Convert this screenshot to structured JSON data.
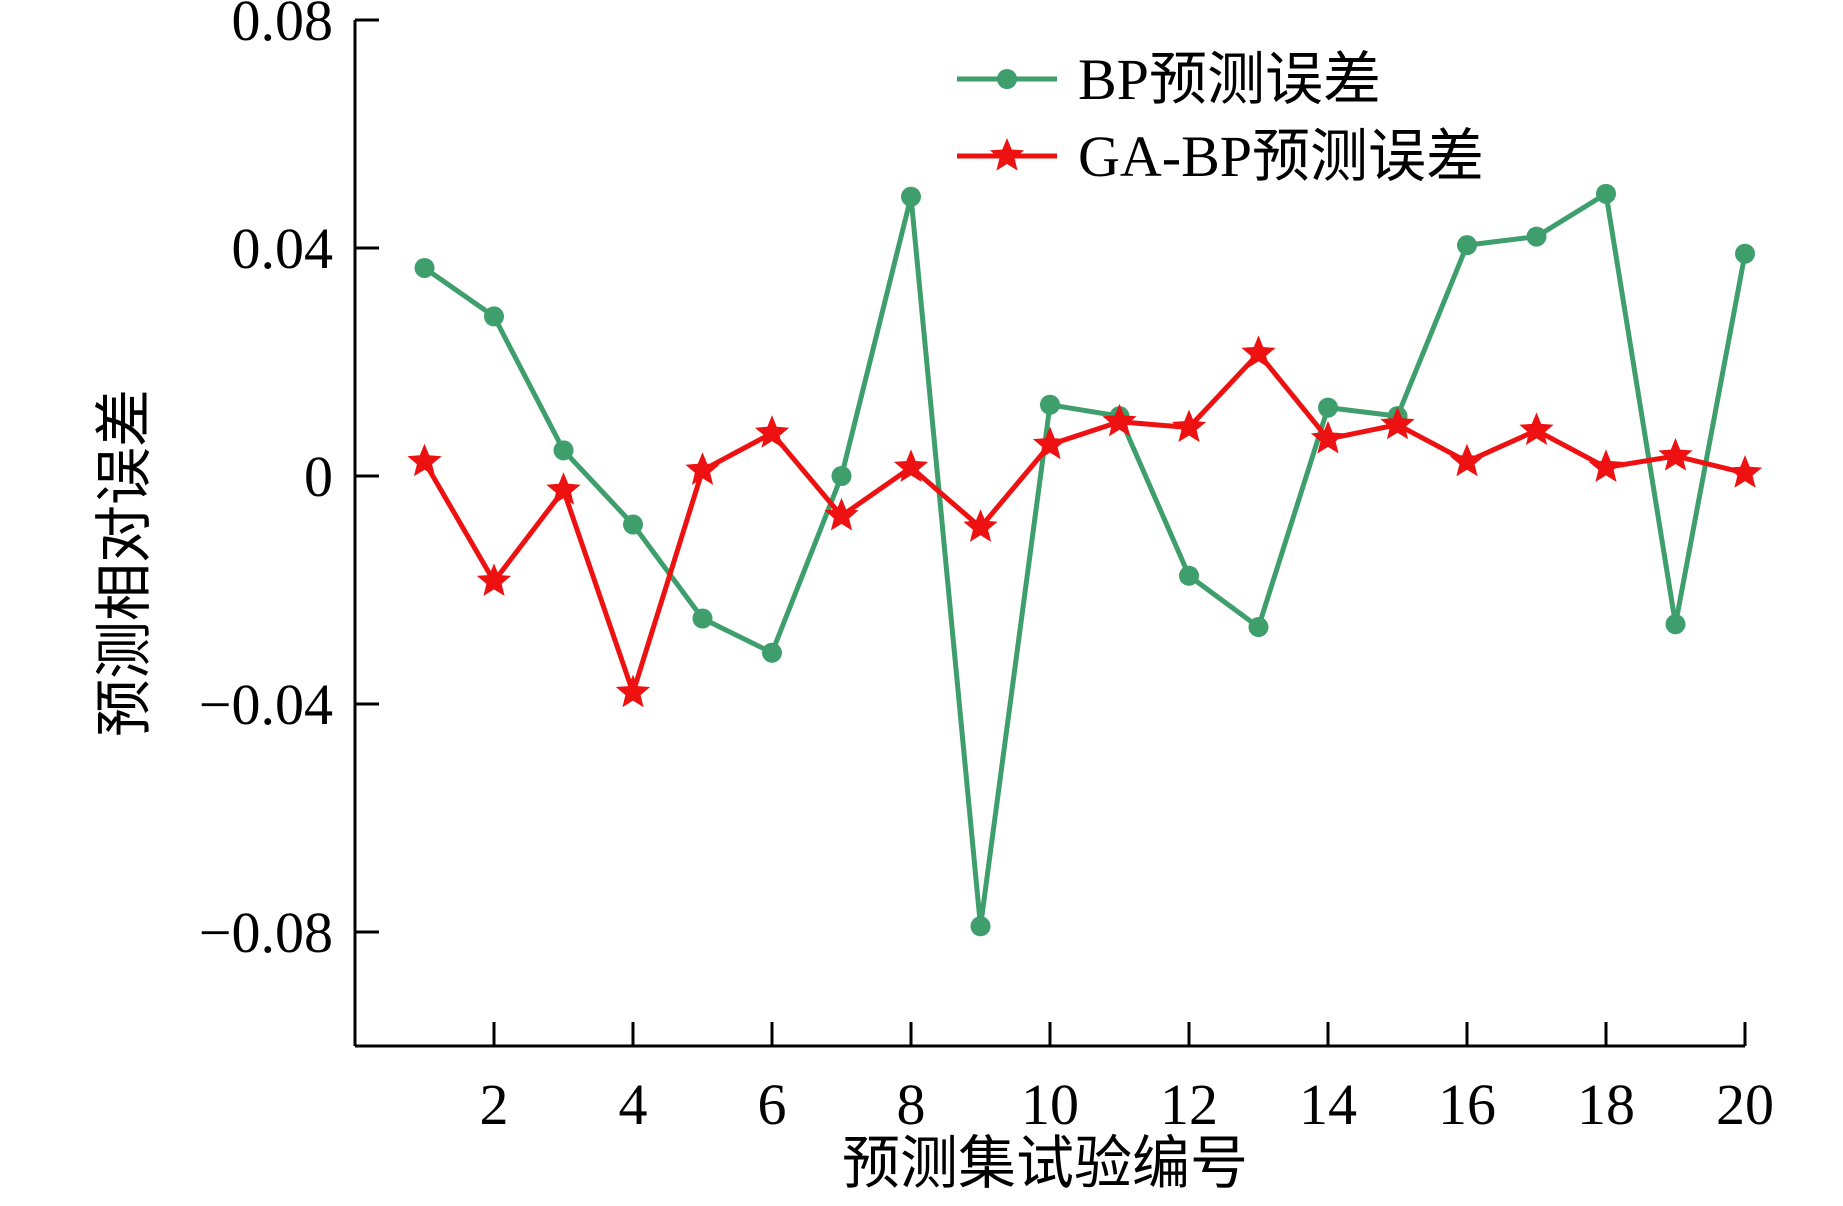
{
  "chart_data": {
    "type": "line",
    "title": "",
    "xlabel": "预测集试验编号",
    "ylabel": "预测相对误差",
    "x": [
      1,
      2,
      3,
      4,
      5,
      6,
      7,
      8,
      9,
      10,
      11,
      12,
      13,
      14,
      15,
      16,
      17,
      18,
      19,
      20
    ],
    "xticks": [
      "2",
      "4",
      "6",
      "8",
      "10",
      "12",
      "14",
      "16",
      "18",
      "20"
    ],
    "xtick_values": [
      2,
      4,
      6,
      8,
      10,
      12,
      14,
      16,
      18,
      20
    ],
    "xlim": [
      0,
      20
    ],
    "yticks": [
      "0.08",
      "0.04",
      "0",
      "−0.04",
      "−0.08"
    ],
    "ytick_values": [
      0.08,
      0.04,
      0,
      -0.04,
      -0.08
    ],
    "ylim": [
      -0.1,
      0.08
    ],
    "grid": false,
    "legend_position": "top-right",
    "series": [
      {
        "name": "BP预测误差",
        "color": "#3e9e6c",
        "marker": "circle",
        "values": [
          0.0365,
          0.028,
          0.0045,
          -0.0085,
          -0.025,
          -0.031,
          0.0,
          0.049,
          -0.079,
          0.0125,
          0.0105,
          -0.0175,
          -0.0265,
          0.012,
          0.0105,
          0.0405,
          0.042,
          0.0495,
          -0.026,
          0.039
        ]
      },
      {
        "name": "GA-BP预测误差",
        "color": "#ee1111",
        "marker": "star",
        "values": [
          0.0025,
          -0.0185,
          -0.0025,
          -0.038,
          0.001,
          0.0075,
          -0.007,
          0.0015,
          -0.009,
          0.0055,
          0.0095,
          0.0085,
          0.0215,
          0.0065,
          0.009,
          0.0025,
          0.008,
          0.0015,
          0.0035,
          0.0005
        ]
      }
    ]
  }
}
